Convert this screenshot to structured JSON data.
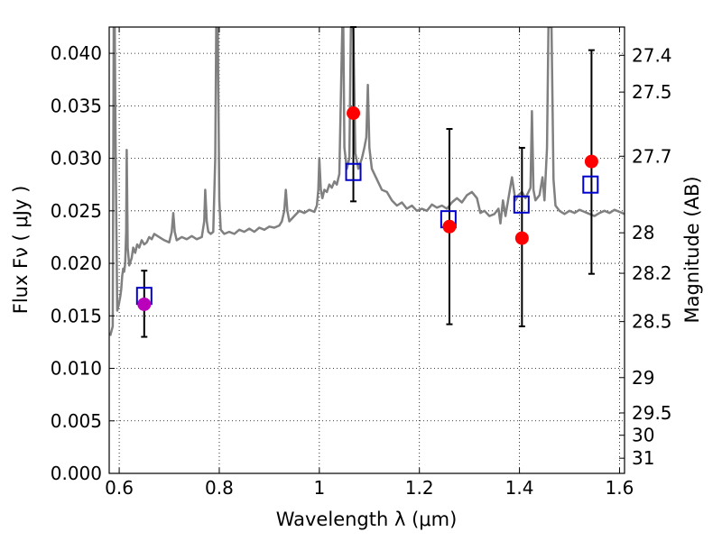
{
  "chart_data": {
    "type": "scatter",
    "title": "",
    "xlabel": "Wavelength  λ (μm)",
    "ylabel": "Flux  Fν ( μJy )",
    "ylabel_right": "Magnitude (AB)",
    "xlim": [
      0.58,
      1.61
    ],
    "ylim": [
      0.0,
      0.0425
    ],
    "grid": true,
    "grid_style": "dotted",
    "colors": {
      "spectrum": "#808080",
      "model_box": "#0000cc",
      "observed": "#ff0000",
      "observed_first": "#bb00bb",
      "errorbar": "#000000"
    },
    "x_ticks": [
      0.6,
      0.8,
      1.0,
      1.2,
      1.4,
      1.6
    ],
    "x_tick_labels": [
      "0.6",
      "0.8",
      "1",
      "1.2",
      "1.4",
      "1.6"
    ],
    "y_ticks": [
      0.0,
      0.005,
      0.01,
      0.015,
      0.02,
      0.025,
      0.03,
      0.035,
      0.04
    ],
    "y_tick_labels": [
      "0.000",
      "0.005",
      "0.010",
      "0.015",
      "0.020",
      "0.025",
      "0.030",
      "0.035",
      "0.040"
    ],
    "right_ticks": [
      27.4,
      27.5,
      27.7,
      28,
      28.2,
      28.5,
      29,
      29.5,
      30,
      31
    ],
    "right_tick_labels": [
      "27.4",
      "27.5",
      "27.7",
      "28",
      "28.2",
      "28.5",
      "29",
      "29.5",
      "30",
      "31"
    ],
    "spectrum": [
      [
        0.582,
        0.0131
      ],
      [
        0.587,
        0.014
      ],
      [
        0.589,
        0.0425
      ],
      [
        0.591,
        0.0425
      ],
      [
        0.593,
        0.03
      ],
      [
        0.596,
        0.0155
      ],
      [
        0.599,
        0.016
      ],
      [
        0.602,
        0.0168
      ],
      [
        0.604,
        0.0175
      ],
      [
        0.606,
        0.0188
      ],
      [
        0.608,
        0.0195
      ],
      [
        0.61,
        0.0192
      ],
      [
        0.612,
        0.02
      ],
      [
        0.614,
        0.023
      ],
      [
        0.615,
        0.0308
      ],
      [
        0.617,
        0.0215
      ],
      [
        0.62,
        0.0198
      ],
      [
        0.625,
        0.0205
      ],
      [
        0.628,
        0.0215
      ],
      [
        0.632,
        0.021
      ],
      [
        0.636,
        0.0218
      ],
      [
        0.64,
        0.0215
      ],
      [
        0.645,
        0.0222
      ],
      [
        0.65,
        0.0218
      ],
      [
        0.655,
        0.022
      ],
      [
        0.66,
        0.0225
      ],
      [
        0.665,
        0.0223
      ],
      [
        0.67,
        0.0228
      ],
      [
        0.68,
        0.0225
      ],
      [
        0.69,
        0.0222
      ],
      [
        0.7,
        0.022
      ],
      [
        0.705,
        0.023
      ],
      [
        0.708,
        0.0248
      ],
      [
        0.711,
        0.023
      ],
      [
        0.715,
        0.0222
      ],
      [
        0.725,
        0.0225
      ],
      [
        0.735,
        0.0223
      ],
      [
        0.745,
        0.0226
      ],
      [
        0.755,
        0.0223
      ],
      [
        0.765,
        0.0225
      ],
      [
        0.77,
        0.024
      ],
      [
        0.772,
        0.027
      ],
      [
        0.775,
        0.024
      ],
      [
        0.778,
        0.023
      ],
      [
        0.783,
        0.0228
      ],
      [
        0.788,
        0.023
      ],
      [
        0.792,
        0.03
      ],
      [
        0.794,
        0.0425
      ],
      [
        0.797,
        0.0425
      ],
      [
        0.8,
        0.026
      ],
      [
        0.803,
        0.0232
      ],
      [
        0.81,
        0.0228
      ],
      [
        0.82,
        0.023
      ],
      [
        0.83,
        0.0228
      ],
      [
        0.84,
        0.0232
      ],
      [
        0.85,
        0.023
      ],
      [
        0.86,
        0.0233
      ],
      [
        0.87,
        0.023
      ],
      [
        0.88,
        0.0234
      ],
      [
        0.89,
        0.0232
      ],
      [
        0.9,
        0.0235
      ],
      [
        0.91,
        0.0234
      ],
      [
        0.92,
        0.0236
      ],
      [
        0.925,
        0.024
      ],
      [
        0.93,
        0.025
      ],
      [
        0.933,
        0.027
      ],
      [
        0.936,
        0.025
      ],
      [
        0.94,
        0.024
      ],
      [
        0.95,
        0.0245
      ],
      [
        0.96,
        0.025
      ],
      [
        0.97,
        0.0248
      ],
      [
        0.98,
        0.0251
      ],
      [
        0.99,
        0.0249
      ],
      [
        0.995,
        0.0255
      ],
      [
        0.998,
        0.027
      ],
      [
        1.0,
        0.03
      ],
      [
        1.003,
        0.027
      ],
      [
        1.006,
        0.0262
      ],
      [
        1.01,
        0.027
      ],
      [
        1.015,
        0.0268
      ],
      [
        1.02,
        0.0275
      ],
      [
        1.025,
        0.0272
      ],
      [
        1.03,
        0.0278
      ],
      [
        1.035,
        0.0275
      ],
      [
        1.04,
        0.0285
      ],
      [
        1.044,
        0.038
      ],
      [
        1.046,
        0.0425
      ],
      [
        1.048,
        0.0425
      ],
      [
        1.05,
        0.031
      ],
      [
        1.055,
        0.029
      ],
      [
        1.06,
        0.03
      ],
      [
        1.063,
        0.0425
      ],
      [
        1.068,
        0.0425
      ],
      [
        1.072,
        0.0305
      ],
      [
        1.078,
        0.029
      ],
      [
        1.085,
        0.03
      ],
      [
        1.09,
        0.031
      ],
      [
        1.094,
        0.032
      ],
      [
        1.097,
        0.037
      ],
      [
        1.1,
        0.031
      ],
      [
        1.105,
        0.029
      ],
      [
        1.115,
        0.028
      ],
      [
        1.125,
        0.027
      ],
      [
        1.135,
        0.0268
      ],
      [
        1.145,
        0.026
      ],
      [
        1.155,
        0.0255
      ],
      [
        1.165,
        0.0258
      ],
      [
        1.175,
        0.0252
      ],
      [
        1.185,
        0.0255
      ],
      [
        1.195,
        0.025
      ],
      [
        1.205,
        0.0252
      ],
      [
        1.215,
        0.025
      ],
      [
        1.225,
        0.0256
      ],
      [
        1.235,
        0.0253
      ],
      [
        1.245,
        0.0255
      ],
      [
        1.255,
        0.0252
      ],
      [
        1.265,
        0.0258
      ],
      [
        1.275,
        0.0262
      ],
      [
        1.285,
        0.0258
      ],
      [
        1.295,
        0.0265
      ],
      [
        1.305,
        0.0268
      ],
      [
        1.315,
        0.0262
      ],
      [
        1.322,
        0.0248
      ],
      [
        1.33,
        0.025
      ],
      [
        1.34,
        0.0245
      ],
      [
        1.35,
        0.0247
      ],
      [
        1.358,
        0.0252
      ],
      [
        1.362,
        0.0238
      ],
      [
        1.367,
        0.026
      ],
      [
        1.372,
        0.0245
      ],
      [
        1.378,
        0.0262
      ],
      [
        1.385,
        0.0282
      ],
      [
        1.392,
        0.026
      ],
      [
        1.398,
        0.0265
      ],
      [
        1.405,
        0.0268
      ],
      [
        1.412,
        0.0262
      ],
      [
        1.418,
        0.0268
      ],
      [
        1.422,
        0.0272
      ],
      [
        1.425,
        0.0345
      ],
      [
        1.428,
        0.027
      ],
      [
        1.432,
        0.026
      ],
      [
        1.44,
        0.0265
      ],
      [
        1.446,
        0.0282
      ],
      [
        1.45,
        0.026
      ],
      [
        1.455,
        0.031
      ],
      [
        1.458,
        0.0425
      ],
      [
        1.464,
        0.0425
      ],
      [
        1.468,
        0.028
      ],
      [
        1.472,
        0.0255
      ],
      [
        1.48,
        0.025
      ],
      [
        1.49,
        0.0247
      ],
      [
        1.5,
        0.025
      ],
      [
        1.51,
        0.0248
      ],
      [
        1.52,
        0.0251
      ],
      [
        1.53,
        0.0249
      ],
      [
        1.54,
        0.0247
      ],
      [
        1.55,
        0.0245
      ],
      [
        1.56,
        0.0248
      ],
      [
        1.57,
        0.025
      ],
      [
        1.58,
        0.0248
      ],
      [
        1.59,
        0.0251
      ],
      [
        1.6,
        0.0249
      ],
      [
        1.61,
        0.0247
      ]
    ],
    "model_points": [
      {
        "x": 0.65,
        "y": 0.0169
      },
      {
        "x": 1.068,
        "y": 0.0287
      },
      {
        "x": 1.258,
        "y": 0.0242
      },
      {
        "x": 1.404,
        "y": 0.0256
      },
      {
        "x": 1.542,
        "y": 0.0275
      }
    ],
    "observed_points": [
      {
        "x": 0.65,
        "y": 0.0161,
        "err_low": 0.013,
        "err_high": 0.0193,
        "color": "#bb00bb"
      },
      {
        "x": 1.068,
        "y": 0.0343,
        "err_low": 0.0259,
        "err_high": 0.0425,
        "color": "#ff0000"
      },
      {
        "x": 1.26,
        "y": 0.0235,
        "err_low": 0.0142,
        "err_high": 0.0328,
        "color": "#ff0000"
      },
      {
        "x": 1.405,
        "y": 0.0224,
        "err_low": 0.014,
        "err_high": 0.031,
        "color": "#ff0000"
      },
      {
        "x": 1.544,
        "y": 0.0297,
        "err_low": 0.019,
        "err_high": 0.0403,
        "color": "#ff0000"
      }
    ]
  }
}
